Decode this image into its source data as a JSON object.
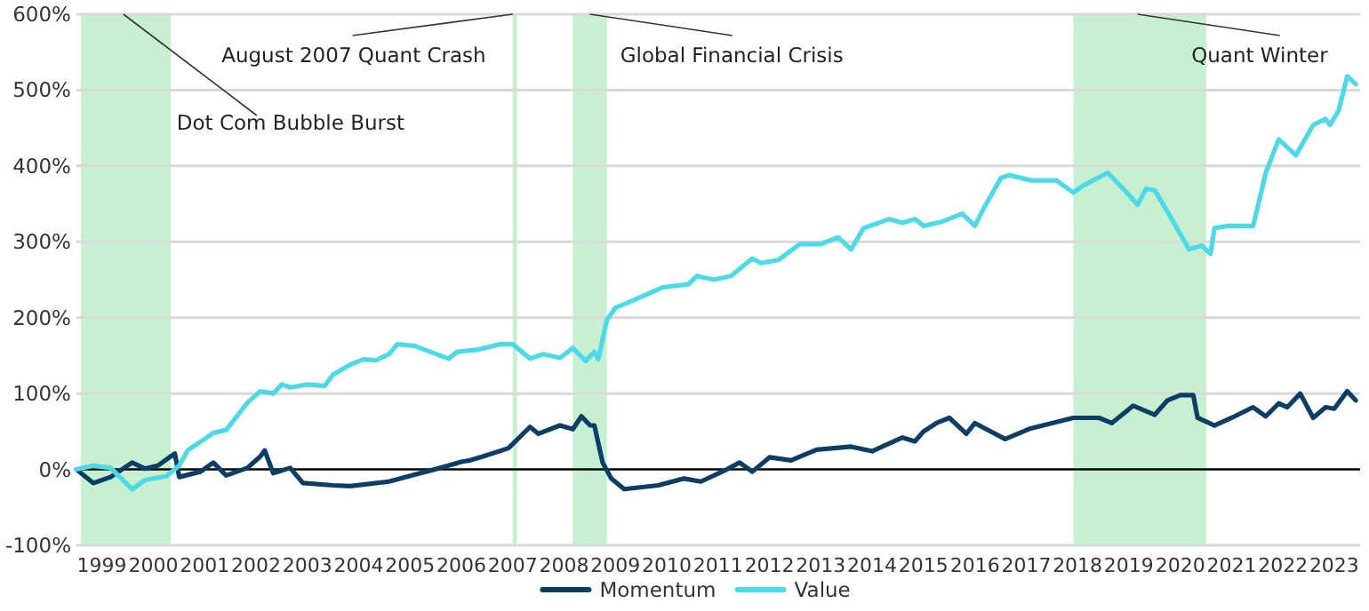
{
  "chart_data": {
    "type": "line",
    "xlim": [
      "1999-01",
      "2024-01"
    ],
    "ylim": [
      -100,
      600
    ],
    "yticks": [
      {
        "value": -100,
        "label": "-100%"
      },
      {
        "value": 0,
        "label": "0%"
      },
      {
        "value": 100,
        "label": "100%"
      },
      {
        "value": 200,
        "label": "200%"
      },
      {
        "value": 300,
        "label": "300%"
      },
      {
        "value": 400,
        "label": "400%"
      },
      {
        "value": 500,
        "label": "500%"
      },
      {
        "value": 600,
        "label": "600%"
      }
    ],
    "xticks": [
      {
        "value": "1999-07",
        "label": "1999"
      },
      {
        "value": "2000-07",
        "label": "2000"
      },
      {
        "value": "2001-07",
        "label": "2001"
      },
      {
        "value": "2002-07",
        "label": "2002"
      },
      {
        "value": "2003-07",
        "label": "2003"
      },
      {
        "value": "2004-07",
        "label": "2004"
      },
      {
        "value": "2005-07",
        "label": "2005"
      },
      {
        "value": "2006-07",
        "label": "2006"
      },
      {
        "value": "2007-07",
        "label": "2007"
      },
      {
        "value": "2008-07",
        "label": "2008"
      },
      {
        "value": "2009-07",
        "label": "2009"
      },
      {
        "value": "2010-07",
        "label": "2010"
      },
      {
        "value": "2011-07",
        "label": "2011"
      },
      {
        "value": "2012-07",
        "label": "2012"
      },
      {
        "value": "2013-07",
        "label": "2013"
      },
      {
        "value": "2014-07",
        "label": "2014"
      },
      {
        "value": "2015-07",
        "label": "2015"
      },
      {
        "value": "2016-07",
        "label": "2016"
      },
      {
        "value": "2017-07",
        "label": "2017"
      },
      {
        "value": "2018-07",
        "label": "2018"
      },
      {
        "value": "2019-07",
        "label": "2019"
      },
      {
        "value": "2020-07",
        "label": "2020"
      },
      {
        "value": "2021-07",
        "label": "2021"
      },
      {
        "value": "2022-07",
        "label": "2022"
      },
      {
        "value": "2023-07",
        "label": "2023"
      }
    ],
    "grid": "y",
    "legend": "bottom",
    "line_style": "solid",
    "marker": "none",
    "bands": [
      {
        "axis": "x",
        "from": "1999-02",
        "to": "2000-11",
        "color": "#c6f0cf"
      },
      {
        "axis": "x",
        "from": "2007-07",
        "to": "2007-08",
        "color": "#c6f0cf"
      },
      {
        "axis": "x",
        "from": "2008-09",
        "to": "2009-05",
        "color": "#c6f0cf"
      },
      {
        "axis": "x",
        "from": "2018-06",
        "to": "2021-01",
        "color": "#c6f0cf"
      }
    ],
    "annotations": [
      {
        "text": "Dot Com Bubble Burst",
        "x": "1999-12",
        "y": 600
      },
      {
        "text": "August 2007 Quant Crash",
        "x": "2007-07",
        "y": 600
      },
      {
        "text": "Global Financial Crisis",
        "x": "2009-01",
        "y": 600
      },
      {
        "text": "Quant Winter",
        "x": "2019-09",
        "y": 600
      }
    ],
    "series": [
      {
        "name": "Momentum",
        "color": "#0b3d66",
        "x": [
          "1999-01",
          "1999-05",
          "1999-09",
          "2000-02",
          "2000-05",
          "2000-08",
          "2000-12",
          "2001-01",
          "2001-06",
          "2001-09",
          "2001-12",
          "2002-05",
          "2002-08",
          "2002-09",
          "2002-11",
          "2003-03",
          "2003-06",
          "2004-01",
          "2004-05",
          "2005-02",
          "2005-08",
          "2006-02",
          "2006-07",
          "2006-09",
          "2006-12",
          "2007-06",
          "2007-11",
          "2008-01",
          "2008-06",
          "2008-09",
          "2008-11",
          "2009-01",
          "2009-02",
          "2009-04",
          "2009-06",
          "2009-09",
          "2010-05",
          "2010-11",
          "2011-03",
          "2011-09",
          "2011-12",
          "2012-03",
          "2012-07",
          "2012-12",
          "2013-06",
          "2014-02",
          "2014-07",
          "2015-02",
          "2015-05",
          "2015-07",
          "2015-10",
          "2016-01",
          "2016-05",
          "2016-07",
          "2017-02",
          "2017-08",
          "2018-06",
          "2018-12",
          "2019-03",
          "2019-08",
          "2020-01",
          "2020-04",
          "2020-07",
          "2020-10",
          "2020-11",
          "2021-03",
          "2021-07",
          "2021-12",
          "2022-03",
          "2022-06",
          "2022-08",
          "2022-11",
          "2023-02",
          "2023-05",
          "2023-07",
          "2023-10",
          "2023-12"
        ],
        "values": [
          0,
          -18,
          -10,
          9,
          1,
          5,
          21,
          -10,
          -3,
          9,
          -8,
          2,
          17,
          25,
          -5,
          2,
          -18,
          -21,
          -22,
          -16,
          -7,
          2,
          10,
          12,
          17,
          28,
          56,
          47,
          58,
          53,
          70,
          58,
          58,
          9,
          -12,
          -26,
          -21,
          -12,
          -16,
          0,
          9,
          -3,
          16,
          12,
          26,
          30,
          24,
          42,
          37,
          50,
          61,
          68,
          47,
          61,
          40,
          54,
          68,
          68,
          61,
          84,
          72,
          91,
          98,
          98,
          68,
          58,
          68,
          82,
          70,
          87,
          82,
          100,
          68,
          82,
          80,
          103,
          91
        ]
      },
      {
        "name": "Value",
        "color": "#4dd9e8",
        "x": [
          "1999-01",
          "1999-05",
          "1999-09",
          "2000-02",
          "2000-05",
          "2000-10",
          "2001-01",
          "2001-03",
          "2001-09",
          "2001-12",
          "2002-05",
          "2002-08",
          "2002-11",
          "2003-01",
          "2003-03",
          "2003-07",
          "2003-11",
          "2004-01",
          "2004-05",
          "2004-08",
          "2004-11",
          "2005-02",
          "2005-04",
          "2005-08",
          "2006-02",
          "2006-04",
          "2006-06",
          "2006-11",
          "2007-04",
          "2007-07",
          "2007-11",
          "2008-02",
          "2008-06",
          "2008-09",
          "2008-12",
          "2009-02",
          "2009-03",
          "2009-05",
          "2009-07",
          "2009-12",
          "2010-06",
          "2010-12",
          "2011-02",
          "2011-06",
          "2011-10",
          "2012-03",
          "2012-05",
          "2012-09",
          "2013-02",
          "2013-07",
          "2013-11",
          "2014-02",
          "2014-05",
          "2014-11",
          "2015-02",
          "2015-05",
          "2015-07",
          "2015-11",
          "2016-04",
          "2016-07",
          "2016-09",
          "2017-01",
          "2017-03",
          "2017-08",
          "2018-02",
          "2018-06",
          "2018-08",
          "2019-02",
          "2019-06",
          "2019-09",
          "2019-11",
          "2020-01",
          "2020-05",
          "2020-09",
          "2020-12",
          "2021-02",
          "2021-03",
          "2021-06",
          "2021-12",
          "2022-03",
          "2022-06",
          "2022-10",
          "2023-02",
          "2023-05",
          "2023-06",
          "2023-08",
          "2023-10",
          "2023-12"
        ],
        "values": [
          0,
          5,
          2,
          -26,
          -14,
          -9,
          5,
          25,
          48,
          52,
          88,
          103,
          100,
          112,
          108,
          112,
          110,
          125,
          138,
          145,
          144,
          152,
          165,
          163,
          150,
          146,
          155,
          158,
          165,
          165,
          146,
          152,
          147,
          160,
          143,
          155,
          145,
          197,
          213,
          225,
          240,
          244,
          255,
          250,
          255,
          278,
          272,
          276,
          297,
          297,
          306,
          290,
          318,
          330,
          325,
          330,
          321,
          326,
          337,
          321,
          344,
          384,
          388,
          381,
          381,
          365,
          373,
          391,
          368,
          349,
          370,
          368,
          330,
          290,
          295,
          284,
          318,
          321,
          321,
          391,
          435,
          414,
          454,
          462,
          454,
          473,
          518,
          508
        ]
      }
    ]
  }
}
